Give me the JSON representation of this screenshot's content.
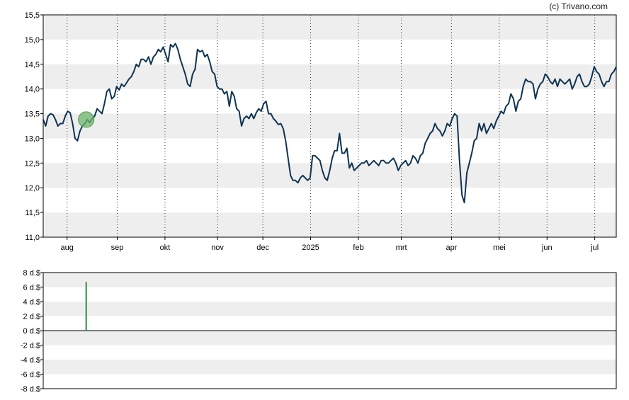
{
  "copyright": "(c) Trivano.com",
  "colors": {
    "line": "#0e3452",
    "marker_fill": "#6bb56b",
    "bar": "#2e8b3e",
    "band": "#eeeeee",
    "grid_vertical": "#333333",
    "axis": "#000000"
  },
  "chart_data": [
    {
      "type": "line",
      "name": "price-chart",
      "ylim": [
        11.0,
        15.5
      ],
      "y_ticks": [
        "11,0",
        "11,5",
        "12,0",
        "12,5",
        "13,0",
        "13,5",
        "14,0",
        "14,5",
        "15,0",
        "15,5"
      ],
      "x_ticks": [
        "aug",
        "sep",
        "okt",
        "nov",
        "dec",
        "2025",
        "feb",
        "mrt",
        "apr",
        "mei",
        "jun",
        "jul"
      ],
      "x_tick_positions": [
        10,
        31,
        51,
        73,
        92,
        112,
        132,
        150,
        171,
        191,
        211,
        231
      ],
      "x_range": [
        0,
        240
      ],
      "grid": "vertical dotted at month ticks, alternating horizontal bands",
      "marker": {
        "x": 18,
        "y": 13.38
      },
      "values": [
        13.38,
        13.25,
        13.45,
        13.5,
        13.48,
        13.38,
        13.25,
        13.3,
        13.3,
        13.45,
        13.55,
        13.52,
        13.3,
        13.0,
        12.95,
        13.15,
        13.25,
        13.3,
        13.38,
        13.32,
        13.4,
        13.45,
        13.6,
        13.55,
        13.5,
        13.7,
        13.95,
        14.0,
        13.8,
        13.85,
        14.05,
        13.98,
        14.1,
        14.05,
        14.12,
        14.2,
        14.25,
        14.35,
        14.5,
        14.45,
        14.6,
        14.6,
        14.55,
        14.65,
        14.5,
        14.65,
        14.7,
        14.8,
        14.75,
        14.85,
        14.7,
        14.55,
        14.9,
        14.85,
        14.92,
        14.8,
        14.6,
        14.45,
        14.3,
        14.1,
        14.05,
        14.3,
        14.4,
        14.8,
        14.75,
        14.78,
        14.65,
        14.7,
        14.55,
        14.35,
        14.3,
        14.05,
        14.0,
        14.0,
        13.9,
        13.95,
        13.65,
        13.95,
        13.85,
        13.6,
        13.55,
        13.25,
        13.4,
        13.45,
        13.4,
        13.5,
        13.4,
        13.52,
        13.6,
        13.55,
        13.7,
        13.75,
        13.5,
        13.5,
        13.4,
        13.35,
        13.28,
        13.3,
        13.2,
        12.95,
        12.6,
        12.25,
        12.15,
        12.15,
        12.1,
        12.2,
        12.25,
        12.2,
        12.15,
        12.2,
        12.65,
        12.65,
        12.6,
        12.55,
        12.35,
        12.2,
        12.15,
        12.35,
        12.6,
        12.75,
        12.75,
        13.1,
        12.7,
        12.7,
        12.8,
        12.4,
        12.5,
        12.35,
        12.4,
        12.45,
        12.5,
        12.5,
        12.55,
        12.45,
        12.5,
        12.55,
        12.5,
        12.45,
        12.55,
        12.55,
        12.5,
        12.5,
        12.55,
        12.6,
        12.5,
        12.35,
        12.45,
        12.5,
        12.55,
        12.45,
        12.5,
        12.65,
        12.6,
        12.5,
        12.65,
        12.7,
        12.9,
        13.0,
        13.1,
        13.15,
        13.3,
        13.2,
        13.15,
        13.05,
        13.15,
        13.3,
        13.25,
        13.4,
        13.5,
        13.45,
        12.55,
        11.85,
        11.7,
        12.3,
        12.5,
        12.7,
        12.95,
        13.0,
        13.3,
        13.15,
        13.3,
        13.1,
        13.2,
        13.3,
        13.2,
        13.35,
        13.45,
        13.55,
        13.5,
        13.65,
        13.7,
        13.9,
        13.8,
        13.55,
        13.75,
        13.8,
        14.05,
        14.2,
        14.15,
        14.15,
        14.1,
        13.8,
        14.0,
        14.1,
        14.15,
        14.3,
        14.25,
        14.15,
        14.1,
        14.2,
        14.05,
        14.2,
        14.15,
        14.1,
        14.15,
        14.2,
        14.0,
        14.1,
        14.25,
        14.3,
        14.15,
        14.05,
        14.05,
        14.1,
        14.25,
        14.45,
        14.35,
        14.3,
        14.15,
        14.05,
        14.15,
        14.15,
        14.3,
        14.35,
        14.45
      ]
    },
    {
      "type": "bar",
      "name": "dividend-chart",
      "ylim": [
        -8,
        8
      ],
      "y_ticks": [
        "8 d.$",
        "6 d.$",
        "4 d.$",
        "2 d.$",
        "0 d.$",
        "-2 d.$",
        "-4 d.$",
        "-6 d.$",
        "-8 d.$"
      ],
      "x_range": [
        0,
        240
      ],
      "bars": [
        {
          "x": 18,
          "value": 6.7
        }
      ]
    }
  ]
}
